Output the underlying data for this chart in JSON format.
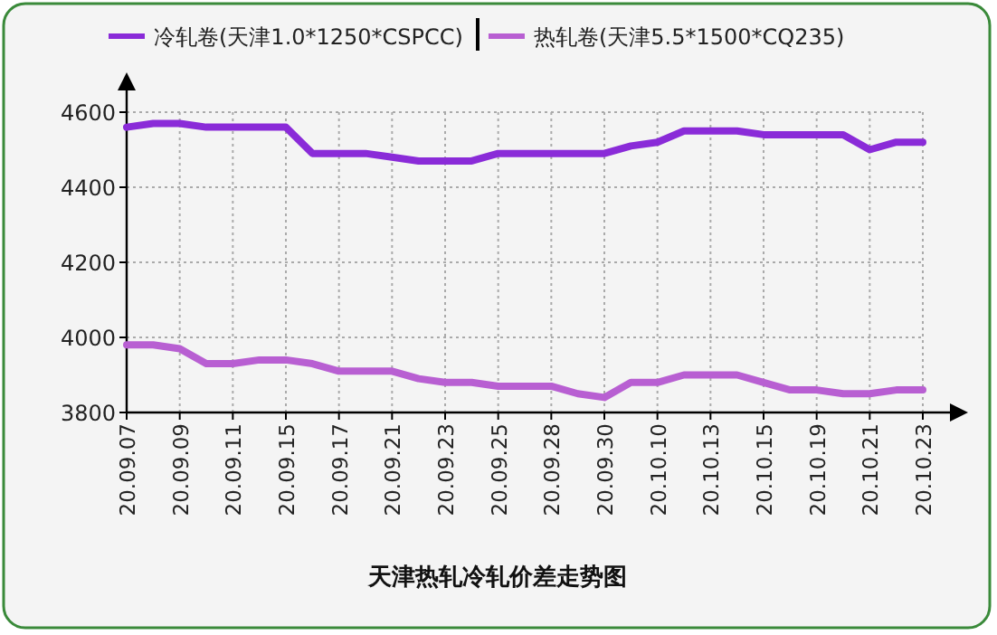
{
  "chart_data": {
    "type": "line",
    "title": "天津热轧冷轧价差走势图",
    "categories": [
      "20.09.07",
      null,
      "20.09.09",
      null,
      "20.09.11",
      null,
      "20.09.15",
      null,
      "20.09.17",
      null,
      "20.09.21",
      null,
      "20.09.23",
      null,
      "20.09.25",
      null,
      "20.09.28",
      null,
      "20.09.30",
      null,
      "20.10.10",
      null,
      "20.10.13",
      null,
      "20.10.15",
      null,
      "20.10.19",
      null,
      "20.10.21",
      null,
      "20.10.23"
    ],
    "series": [
      {
        "name": "冷轧卷(天津1.0*1250*CSPCC)",
        "color": "#8a2bd8",
        "values": [
          4560,
          4570,
          4570,
          4560,
          4560,
          4560,
          4560,
          4490,
          4490,
          4490,
          4480,
          4470,
          4470,
          4470,
          4490,
          4490,
          4490,
          4490,
          4490,
          4510,
          4520,
          4550,
          4550,
          4550,
          4540,
          4540,
          4540,
          4540,
          4500,
          4520,
          4520
        ]
      },
      {
        "name": "热轧卷(天津5.5*1500*CQ235)",
        "color": "#b85fd2",
        "values": [
          3980,
          3980,
          3970,
          3930,
          3930,
          3940,
          3940,
          3930,
          3910,
          3910,
          3910,
          3890,
          3880,
          3880,
          3870,
          3870,
          3870,
          3850,
          3840,
          3880,
          3880,
          3900,
          3900,
          3900,
          3880,
          3860,
          3860,
          3850,
          3850,
          3860,
          3860
        ]
      }
    ],
    "ylim": [
      3800,
      4600
    ],
    "yticks": [
      3800,
      4000,
      4200,
      4400,
      4600
    ],
    "grid": true,
    "legend": "top",
    "marker": "none",
    "line_style": "solid"
  }
}
